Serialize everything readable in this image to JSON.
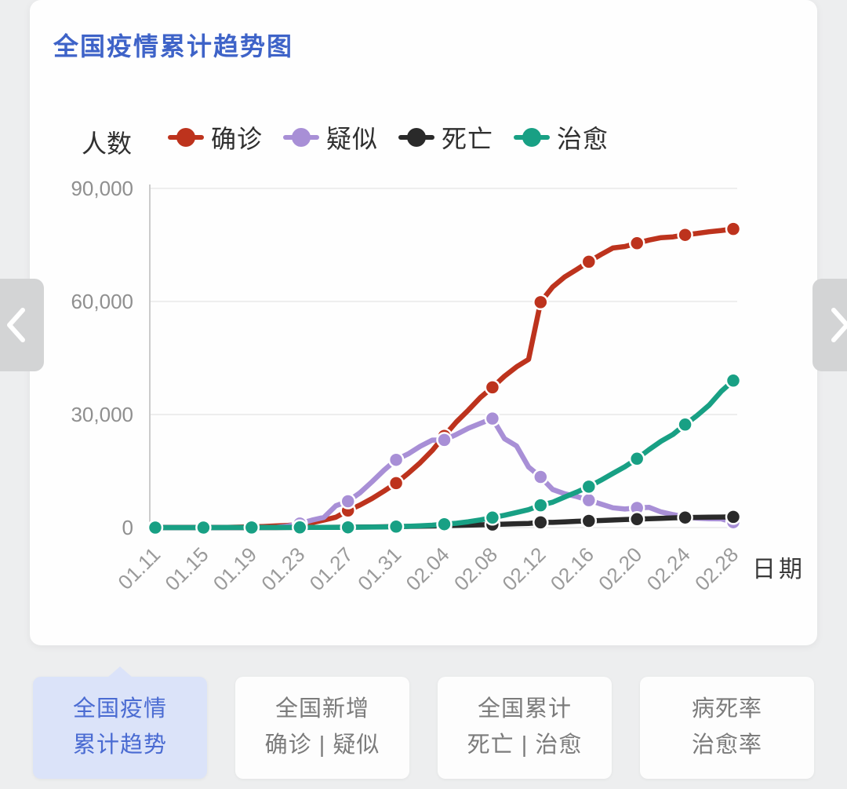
{
  "title": "全国疫情累计趋势图",
  "theme": {
    "title_color": "#3e63c8",
    "active_tab_bg": "#dbe3f9",
    "active_tab_text": "#4a6bd2",
    "page_bg": "#edeeef",
    "grid_line_color": "#e9e9e9",
    "axis_line_color": "#cccccc"
  },
  "chart_data": {
    "type": "line",
    "title": "全国疫情累计趋势图",
    "xlabel": "日期",
    "ylabel": "人数",
    "ylim": [
      0,
      90000
    ],
    "grid": true,
    "legend_position": "top",
    "y_ticks": [
      0,
      30000,
      60000,
      90000
    ],
    "y_tick_labels": [
      "0",
      "30,000",
      "60,000",
      "90,000"
    ],
    "x_tick_labels": [
      "01.11",
      "01.15",
      "01.19",
      "01.23",
      "01.27",
      "01.31",
      "02.04",
      "02.08",
      "02.12",
      "02.16",
      "02.20",
      "02.24",
      "02.28"
    ],
    "marker_every": 4,
    "x": [
      "01.11",
      "01.12",
      "01.13",
      "01.14",
      "01.15",
      "01.16",
      "01.17",
      "01.18",
      "01.19",
      "01.20",
      "01.21",
      "01.22",
      "01.23",
      "01.24",
      "01.25",
      "01.26",
      "01.27",
      "01.28",
      "01.29",
      "01.30",
      "01.31",
      "02.01",
      "02.02",
      "02.03",
      "02.04",
      "02.05",
      "02.06",
      "02.07",
      "02.08",
      "02.09",
      "02.10",
      "02.11",
      "02.12",
      "02.13",
      "02.14",
      "02.15",
      "02.16",
      "02.17",
      "02.18",
      "02.19",
      "02.20",
      "02.21",
      "02.22",
      "02.23",
      "02.24",
      "02.25",
      "02.26",
      "02.27",
      "02.28"
    ],
    "series": [
      {
        "key": "confirmed",
        "name": "确诊",
        "color": "#bd331d",
        "values": [
          41,
          41,
          41,
          41,
          41,
          45,
          62,
          121,
          198,
          291,
          440,
          571,
          830,
          1287,
          1975,
          2744,
          4515,
          5974,
          7711,
          9692,
          11791,
          14380,
          17205,
          20438,
          24324,
          28018,
          31161,
          34546,
          37198,
          40171,
          42638,
          44653,
          59804,
          63851,
          66492,
          68500,
          70548,
          72436,
          74185,
          74576,
          75465,
          76288,
          76936,
          77150,
          77658,
          78064,
          78497,
          78824,
          79251
        ]
      },
      {
        "key": "suspected",
        "name": "疑似",
        "color": "#a88fd6",
        "values": [
          0,
          0,
          0,
          0,
          0,
          0,
          0,
          0,
          0,
          54,
          37,
          393,
          1072,
          1965,
          2684,
          5794,
          6973,
          9239,
          12167,
          15238,
          17988,
          19544,
          21558,
          23214,
          23260,
          24702,
          26359,
          27657,
          28942,
          23589,
          21675,
          16067,
          13435,
          10109,
          8969,
          8228,
          7264,
          6242,
          5248,
          4922,
          5206,
          5365,
          4148,
          3434,
          2824,
          2491,
          2358,
          2308,
          1418
        ]
      },
      {
        "key": "deaths",
        "name": "死亡",
        "color": "#2a2a2a",
        "values": [
          1,
          1,
          1,
          1,
          2,
          2,
          2,
          3,
          3,
          6,
          9,
          17,
          25,
          41,
          56,
          80,
          106,
          132,
          170,
          213,
          259,
          304,
          361,
          425,
          490,
          563,
          636,
          722,
          811,
          908,
          1016,
          1113,
          1367,
          1380,
          1523,
          1665,
          1770,
          1868,
          2004,
          2118,
          2236,
          2345,
          2442,
          2592,
          2663,
          2715,
          2744,
          2788,
          2835
        ]
      },
      {
        "key": "cured",
        "name": "治愈",
        "color": "#18a084",
        "values": [
          2,
          2,
          2,
          2,
          5,
          8,
          12,
          15,
          17,
          25,
          25,
          28,
          34,
          38,
          49,
          51,
          60,
          103,
          124,
          171,
          243,
          328,
          475,
          632,
          892,
          1153,
          1540,
          2050,
          2649,
          3281,
          3996,
          4740,
          5911,
          6723,
          8096,
          9419,
          10844,
          12552,
          14376,
          16155,
          18264,
          20659,
          22888,
          24734,
          27323,
          29745,
          32495,
          36117,
          39002
        ]
      }
    ]
  },
  "nav": {
    "prev_icon": "chevron-left",
    "next_icon": "chevron-right"
  },
  "tabs": [
    {
      "line1": "全国疫情",
      "line2": "累计趋势",
      "active": true
    },
    {
      "line1": "全国新增",
      "line2": "确诊 | 疑似",
      "active": false
    },
    {
      "line1": "全国累计",
      "line2": "死亡 | 治愈",
      "active": false
    },
    {
      "line1": "病死率",
      "line2": "治愈率",
      "active": false
    }
  ]
}
